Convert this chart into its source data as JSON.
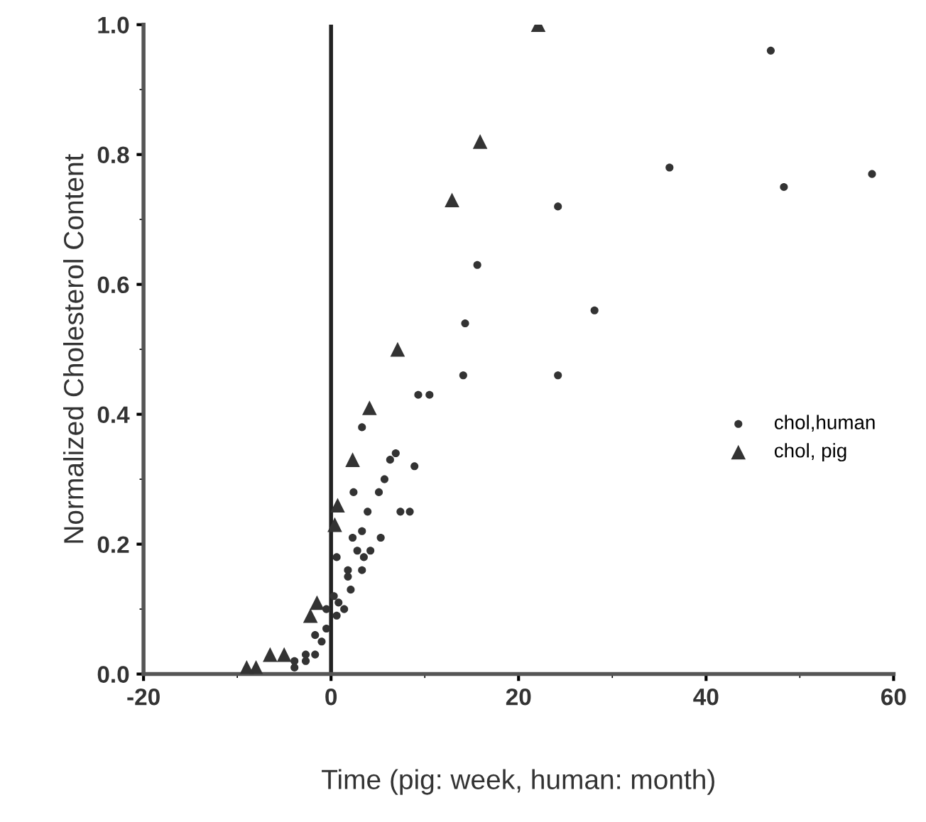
{
  "chart_data": {
    "type": "scatter",
    "xlabel": "Time (pig: week, human: month)",
    "ylabel": "Normalized Cholesterol Content",
    "xlim": [
      -20,
      60
    ],
    "ylim": [
      0,
      1.0
    ],
    "xticks": [
      -20,
      0,
      20,
      40,
      60
    ],
    "yticks": [
      {
        "value": 0,
        "label": "0.0"
      },
      {
        "value": 0.2,
        "label": "0.2"
      },
      {
        "value": 0.4,
        "label": "0.4"
      },
      {
        "value": 0.6,
        "label": "0.6"
      },
      {
        "value": 0.8,
        "label": "0.8"
      },
      {
        "value": 1.0,
        "label": "1.0"
      }
    ],
    "grid": false,
    "legend": "bottom right",
    "ref_lines": [
      {
        "axis": "x",
        "value": 0,
        "color": "#222222"
      }
    ],
    "series": [
      {
        "name": "chol,human",
        "color": "#333333",
        "marker": "circle",
        "x": [
          24.2,
          15.6,
          14.3,
          14.1,
          24.2,
          9.3,
          10.5,
          3.3,
          6.9,
          6.3,
          8.9,
          5.7,
          2.4,
          5.1,
          3.9,
          7.4,
          8.4,
          5.3,
          3.3,
          2.3,
          2.8,
          4.2,
          3.5,
          0.6,
          1.8,
          3.3,
          1.8,
          2.1,
          0.3,
          0.8,
          -0.5,
          1.4,
          0.6,
          -0.5,
          -1.7,
          -1.0,
          -1.7,
          -2.7,
          -2.7,
          -3.9,
          -3.9,
          46.9,
          36.1,
          48.3,
          57.7,
          28.1
        ],
        "values": [
          0.72,
          0.63,
          0.54,
          0.46,
          0.46,
          0.43,
          0.43,
          0.38,
          0.34,
          0.33,
          0.32,
          0.3,
          0.28,
          0.28,
          0.25,
          0.25,
          0.25,
          0.21,
          0.22,
          0.21,
          0.19,
          0.19,
          0.18,
          0.18,
          0.16,
          0.16,
          0.15,
          0.13,
          0.12,
          0.11,
          0.1,
          0.1,
          0.09,
          0.07,
          0.06,
          0.05,
          0.03,
          0.03,
          0.02,
          0.02,
          0.01,
          0.96,
          0.78,
          0.75,
          0.77,
          0.56
        ]
      },
      {
        "name": "chol, pig",
        "color": "#333333",
        "marker": "triangle",
        "x": [
          22.1,
          15.9,
          12.9,
          7.1,
          4.1,
          2.3,
          0.7,
          0.4,
          -1.5,
          -2.2,
          -5.0,
          -6.5,
          -8.0,
          -9.0
        ],
        "values": [
          1.0,
          0.82,
          0.73,
          0.5,
          0.41,
          0.33,
          0.26,
          0.23,
          0.11,
          0.09,
          0.03,
          0.03,
          0.01,
          0.01
        ]
      }
    ]
  }
}
